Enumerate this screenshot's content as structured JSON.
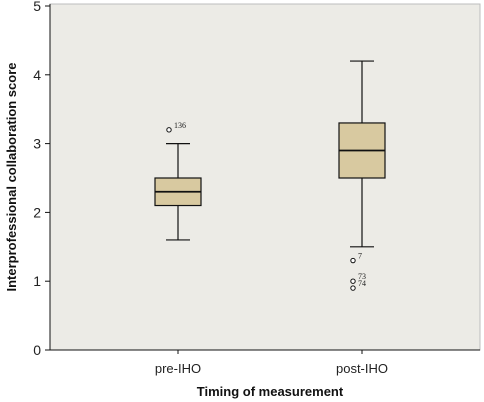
{
  "chart_data": {
    "type": "box",
    "xlabel": "Timing of measurement",
    "ylabel": "Interprofessional collaboration score",
    "ylim": [
      0,
      5
    ],
    "yticks": [
      "0",
      "1",
      "2",
      "3",
      "4",
      "5"
    ],
    "grid": false,
    "categories": [
      "pre-IHO",
      "post-IHO"
    ],
    "boxes": [
      {
        "category": "pre-IHO",
        "whisker_low": 1.6,
        "q1": 2.1,
        "median": 2.3,
        "q3": 2.5,
        "whisker_high": 3.0,
        "outliers": [
          {
            "value": 3.2,
            "label": "136"
          }
        ]
      },
      {
        "category": "post-IHO",
        "whisker_low": 1.5,
        "q1": 2.5,
        "median": 2.9,
        "q3": 3.3,
        "whisker_high": 4.2,
        "outliers": [
          {
            "value": 1.3,
            "label": "7"
          },
          {
            "value": 1.0,
            "label": "73"
          },
          {
            "value": 0.9,
            "label": "74"
          }
        ]
      }
    ],
    "colors": {
      "plot_background": "#ecebe6",
      "box_fill": "#d8c9a0",
      "line": "#111111"
    }
  }
}
